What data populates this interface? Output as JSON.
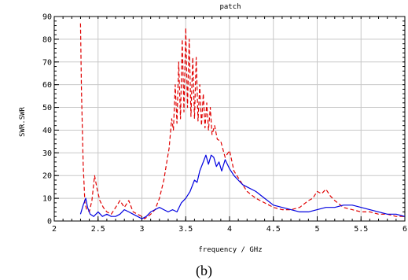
{
  "chart_data": {
    "type": "line",
    "title": "patch",
    "xlabel": "frequency / GHz",
    "ylabel": "SWR.SWR",
    "xlim": [
      2,
      6
    ],
    "ylim": [
      0,
      90
    ],
    "x_ticks": [
      2,
      2.5,
      3,
      3.5,
      4,
      4.5,
      5,
      5.5,
      6
    ],
    "x_tick_labels": [
      "2",
      "2.5",
      "3",
      "3.5",
      "4",
      "4.5",
      "5",
      "5.5",
      "6"
    ],
    "y_ticks": [
      0,
      10,
      20,
      30,
      40,
      50,
      60,
      70,
      80,
      90
    ],
    "y_tick_labels": [
      "0",
      "10",
      "20",
      "30",
      "40",
      "50",
      "60",
      "70",
      "80",
      "90"
    ],
    "minor_tick_step": 0.1,
    "grid": true,
    "series": [
      {
        "color": "#e00000",
        "dash": "dashed",
        "x": [
          2.3,
          2.31,
          2.33,
          2.35,
          2.37,
          2.4,
          2.43,
          2.46,
          2.49,
          2.52,
          2.56,
          2.6,
          2.65,
          2.7,
          2.75,
          2.8,
          2.85,
          2.9,
          2.95,
          3.0,
          3.03,
          3.07,
          3.1,
          3.15,
          3.2,
          3.25,
          3.28,
          3.31,
          3.34,
          3.36,
          3.38,
          3.4,
          3.42,
          3.44,
          3.46,
          3.48,
          3.5,
          3.52,
          3.54,
          3.56,
          3.58,
          3.6,
          3.62,
          3.64,
          3.66,
          3.68,
          3.7,
          3.72,
          3.74,
          3.76,
          3.78,
          3.8,
          3.83,
          3.86,
          3.9,
          3.95,
          4.0,
          4.05,
          4.1,
          4.15,
          4.2,
          4.3,
          4.4,
          4.5,
          4.6,
          4.7,
          4.8,
          4.9,
          4.95,
          5.0,
          5.05,
          5.1,
          5.15,
          5.2,
          5.3,
          5.4,
          5.5,
          5.6,
          5.7,
          5.8,
          5.9,
          6.0
        ],
        "values": [
          87,
          58,
          25,
          8,
          5,
          4,
          9,
          20,
          14,
          9,
          6,
          4,
          3,
          6,
          9,
          6,
          9,
          4,
          3,
          2,
          1,
          2,
          3,
          5,
          10,
          18,
          25,
          32,
          45,
          40,
          60,
          43,
          70,
          45,
          80,
          48,
          85,
          50,
          80,
          46,
          72,
          45,
          72,
          44,
          60,
          42,
          56,
          41,
          52,
          40,
          50,
          38,
          42,
          36,
          35,
          28,
          31,
          22,
          19,
          16,
          13,
          10,
          8,
          6,
          5,
          5,
          6,
          9,
          10,
          13,
          12,
          14,
          11,
          9,
          6,
          5,
          4,
          4,
          3,
          3,
          2,
          2
        ]
      },
      {
        "color": "#0000e0",
        "dash": "solid",
        "x": [
          2.3,
          2.33,
          2.36,
          2.38,
          2.41,
          2.45,
          2.5,
          2.55,
          2.6,
          2.65,
          2.7,
          2.75,
          2.8,
          2.85,
          2.9,
          2.95,
          3.0,
          3.05,
          3.1,
          3.15,
          3.2,
          3.25,
          3.3,
          3.35,
          3.4,
          3.45,
          3.5,
          3.55,
          3.6,
          3.63,
          3.66,
          3.7,
          3.73,
          3.76,
          3.79,
          3.82,
          3.85,
          3.88,
          3.91,
          3.95,
          4.0,
          4.05,
          4.1,
          4.15,
          4.2,
          4.3,
          4.4,
          4.5,
          4.6,
          4.7,
          4.8,
          4.9,
          5.0,
          5.1,
          5.2,
          5.3,
          5.4,
          5.5,
          5.6,
          5.7,
          5.8,
          5.9,
          6.0
        ],
        "values": [
          3,
          7,
          10,
          6,
          3,
          2,
          4,
          2,
          3,
          2,
          2,
          3,
          5,
          4,
          3,
          2,
          1,
          2,
          4,
          5,
          6,
          5,
          4,
          5,
          4,
          8,
          10,
          13,
          18,
          17,
          22,
          26,
          29,
          25,
          29,
          28,
          24,
          26,
          22,
          27,
          23,
          20,
          18,
          16,
          15,
          13,
          10,
          7,
          6,
          5,
          4,
          4,
          5,
          6,
          6,
          7,
          7,
          6,
          5,
          4,
          3,
          3,
          2
        ]
      }
    ]
  },
  "caption": "(b)"
}
